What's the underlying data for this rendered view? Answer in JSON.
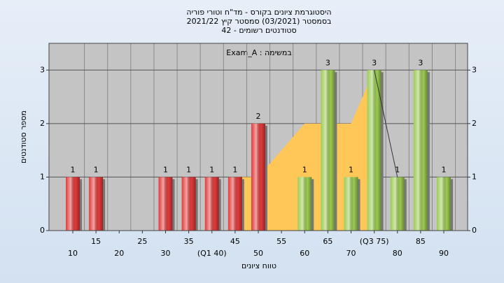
{
  "chart_data": {
    "type": "bar",
    "title": "היסטוגרמת ציונים בקורס - מד\"ח וטורי פוריה",
    "subtitle": "בסמסטר (03/2021) סמסטר קיץ 2021/22",
    "subtitle2": "סטודנטים רשומים - 42",
    "annotation": "Exam_A : במשימה",
    "ylabel": "מספר סטודנטים",
    "xlabel": "טווח ציונים",
    "categories": [
      "10",
      "15",
      "20",
      "25",
      "30",
      "35",
      "(Q1 40)",
      "45",
      "50",
      "55",
      "60",
      "65",
      "70",
      "(Q3 75)",
      "80",
      "85",
      "90"
    ],
    "values": [
      1,
      1,
      0,
      0,
      1,
      1,
      1,
      1,
      2,
      0,
      1,
      3,
      1,
      3,
      1,
      3,
      1
    ],
    "colors": [
      "#e23a3a",
      "#e23a3a",
      "#e23a3a",
      "#e23a3a",
      "#e23a3a",
      "#e23a3a",
      "#e23a3a",
      "#e23a3a",
      "#e23a3a",
      "#9ccc52",
      "#9ccc52",
      "#9ccc52",
      "#9ccc52",
      "#9ccc52",
      "#9ccc52",
      "#9ccc52",
      "#9ccc52"
    ],
    "area_values": [
      null,
      null,
      null,
      null,
      null,
      null,
      null,
      1,
      1,
      1.5,
      2,
      2,
      2,
      3,
      null,
      null,
      null
    ],
    "area_color": "#ffc757",
    "line_values": [
      null,
      null,
      null,
      null,
      null,
      null,
      null,
      null,
      null,
      null,
      null,
      null,
      null,
      3,
      1,
      null,
      null
    ],
    "ylim": [
      0,
      3.5
    ],
    "yticks": [
      0,
      1,
      2,
      3
    ],
    "grid": true
  }
}
